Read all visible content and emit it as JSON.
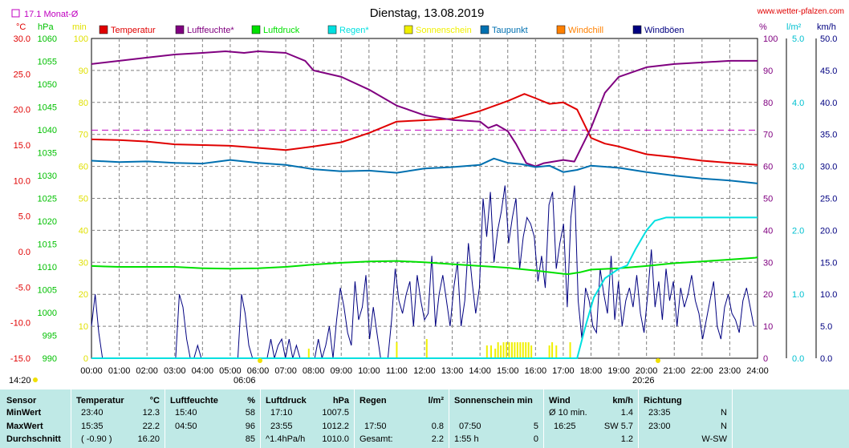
{
  "chart_data": {
    "type": "line",
    "title": "Dienstag, 13.08.2019",
    "source": "www.wetter-pfalzen.com",
    "x_ticks": [
      "00:00",
      "01:00",
      "02:00",
      "03:00",
      "04:00",
      "05:00",
      "06:00",
      "07:00",
      "08:00",
      "09:00",
      "10:00",
      "11:00",
      "12:00",
      "13:00",
      "14:00",
      "15:00",
      "16:00",
      "17:00",
      "18:00",
      "19:00",
      "20:00",
      "21:00",
      "22:00",
      "23:00",
      "24:00"
    ],
    "sunrise": "06:06",
    "sunset": "20:26",
    "sun_left_label": "14:20",
    "month_avg_label": "17.1 Monat-Ø",
    "month_avg_c": 17.1,
    "axes": {
      "temp": {
        "unit": "°C",
        "min": -15,
        "max": 30,
        "ticks": [
          "30.0",
          "25.0",
          "20.0",
          "15.0",
          "10.0",
          "5.0",
          "0.0",
          "-5.0",
          "-10.0",
          "-15.0"
        ]
      },
      "pressure": {
        "unit": "hPa",
        "min": 990,
        "max": 1060,
        "ticks": [
          "1060",
          "1055",
          "1050",
          "1045",
          "1040",
          "1035",
          "1030",
          "1025",
          "1020",
          "1015",
          "1010",
          "1005",
          "1000",
          "995",
          "990"
        ]
      },
      "minutes": {
        "unit": "min",
        "min": 0,
        "max": 100,
        "ticks": [
          "100",
          "90",
          "80",
          "70",
          "60",
          "50",
          "40",
          "30",
          "20",
          "10",
          "0"
        ]
      },
      "humidity": {
        "unit": "%",
        "min": 0,
        "max": 100,
        "ticks": [
          "100",
          "90",
          "80",
          "70",
          "60",
          "50",
          "40",
          "30",
          "20",
          "10",
          "0"
        ]
      },
      "rain": {
        "unit": "l/m²",
        "min": 0,
        "max": 5,
        "ticks": [
          "5.0",
          "4.0",
          "3.0",
          "2.0",
          "1.0",
          "0.0"
        ]
      },
      "wind": {
        "unit": "km/h",
        "min": 0,
        "max": 50,
        "ticks": [
          "50.0",
          "45.0",
          "40.0",
          "35.0",
          "30.0",
          "25.0",
          "20.0",
          "15.0",
          "10.0",
          "5.0",
          "0.0"
        ]
      }
    },
    "legend": [
      {
        "name": "Temperatur",
        "color": "#e00000"
      },
      {
        "name": "Luftfeuchte*",
        "color": "#800080"
      },
      {
        "name": "Luftdruck",
        "color": "#00e000"
      },
      {
        "name": "Regen*",
        "color": "#00e0e0"
      },
      {
        "name": "Sonnenschein",
        "color": "#f0f000"
      },
      {
        "name": "Taupunkt",
        "color": "#0070b0"
      },
      {
        "name": "Windchill",
        "color": "#ff8000"
      },
      {
        "name": "Windböen",
        "color": "#000080"
      }
    ],
    "series": [
      {
        "key": "temperature",
        "axis": "temp",
        "color": "#e00000",
        "points": [
          [
            0,
            15.8
          ],
          [
            1,
            15.7
          ],
          [
            2,
            15.5
          ],
          [
            3,
            15.1
          ],
          [
            4,
            15.0
          ],
          [
            5,
            14.9
          ],
          [
            6,
            14.6
          ],
          [
            7,
            14.3
          ],
          [
            8,
            14.8
          ],
          [
            9,
            15.4
          ],
          [
            10,
            16.7
          ],
          [
            11,
            18.3
          ],
          [
            12,
            18.5
          ],
          [
            13,
            18.7
          ],
          [
            14,
            19.8
          ],
          [
            15,
            21.2
          ],
          [
            15.6,
            22.2
          ],
          [
            16,
            21.6
          ],
          [
            16.5,
            20.8
          ],
          [
            17,
            21.0
          ],
          [
            17.5,
            20.0
          ],
          [
            18,
            16.0
          ],
          [
            18.5,
            15.2
          ],
          [
            19,
            14.8
          ],
          [
            20,
            13.7
          ],
          [
            21,
            13.3
          ],
          [
            22,
            12.8
          ],
          [
            23,
            12.5
          ],
          [
            23.67,
            12.3
          ],
          [
            24,
            12.2
          ]
        ]
      },
      {
        "key": "humidity",
        "axis": "humidity",
        "color": "#800080",
        "points": [
          [
            0,
            92
          ],
          [
            1,
            93
          ],
          [
            2,
            94
          ],
          [
            3,
            95
          ],
          [
            4,
            95.5
          ],
          [
            4.83,
            96
          ],
          [
            5.5,
            95.5
          ],
          [
            6,
            96
          ],
          [
            7,
            95.5
          ],
          [
            7.7,
            93
          ],
          [
            8,
            90
          ],
          [
            9,
            88
          ],
          [
            10,
            84
          ],
          [
            11,
            79
          ],
          [
            12,
            76
          ],
          [
            13,
            74.5
          ],
          [
            14,
            74
          ],
          [
            14.3,
            72
          ],
          [
            14.6,
            73
          ],
          [
            15,
            71
          ],
          [
            15.3,
            67
          ],
          [
            15.67,
            61
          ],
          [
            16,
            60
          ],
          [
            16.3,
            61
          ],
          [
            17,
            62
          ],
          [
            17.4,
            61.5
          ],
          [
            18,
            72
          ],
          [
            18.5,
            83
          ],
          [
            19,
            88
          ],
          [
            20,
            91
          ],
          [
            21,
            92
          ],
          [
            22,
            92.5
          ],
          [
            23,
            93
          ],
          [
            24,
            93
          ]
        ]
      },
      {
        "key": "pressure",
        "axis": "pressure",
        "color": "#00e000",
        "points": [
          [
            0,
            1010.2
          ],
          [
            1,
            1010.0
          ],
          [
            2,
            1010.0
          ],
          [
            3,
            1010.0
          ],
          [
            4,
            1009.7
          ],
          [
            5,
            1009.6
          ],
          [
            6,
            1009.7
          ],
          [
            7,
            1010.0
          ],
          [
            8,
            1010.5
          ],
          [
            9,
            1010.9
          ],
          [
            10,
            1011.2
          ],
          [
            11,
            1011.3
          ],
          [
            12,
            1011.0
          ],
          [
            13,
            1010.6
          ],
          [
            14,
            1010.2
          ],
          [
            15,
            1009.8
          ],
          [
            16,
            1009.2
          ],
          [
            17,
            1008.5
          ],
          [
            17.17,
            1008.4
          ],
          [
            17.6,
            1008.8
          ],
          [
            18,
            1009.4
          ],
          [
            19,
            1009.7
          ],
          [
            20,
            1010.2
          ],
          [
            21,
            1010.8
          ],
          [
            22,
            1011.2
          ],
          [
            23,
            1011.6
          ],
          [
            23.92,
            1012.0
          ],
          [
            24,
            1012.1
          ]
        ]
      },
      {
        "key": "dewpoint",
        "axis": "temp",
        "color": "#0070b0",
        "points": [
          [
            0,
            12.8
          ],
          [
            1,
            12.6
          ],
          [
            2,
            12.7
          ],
          [
            3,
            12.5
          ],
          [
            4,
            12.4
          ],
          [
            5,
            12.9
          ],
          [
            6,
            12.5
          ],
          [
            7,
            12.2
          ],
          [
            8,
            11.6
          ],
          [
            9,
            11.3
          ],
          [
            10,
            11.4
          ],
          [
            11,
            11.1
          ],
          [
            12,
            11.7
          ],
          [
            13,
            11.9
          ],
          [
            14,
            12.2
          ],
          [
            14.5,
            13.1
          ],
          [
            15,
            12.5
          ],
          [
            15.5,
            12.3
          ],
          [
            16,
            11.9
          ],
          [
            16.5,
            12.1
          ],
          [
            17,
            11.2
          ],
          [
            17.5,
            11.5
          ],
          [
            18,
            12.1
          ],
          [
            19,
            11.8
          ],
          [
            20,
            11.2
          ],
          [
            21,
            10.7
          ],
          [
            22,
            10.3
          ],
          [
            23,
            10.0
          ],
          [
            24,
            9.6
          ]
        ]
      },
      {
        "key": "rain",
        "axis": "rain",
        "color": "#00e0e0",
        "points": [
          [
            0,
            0
          ],
          [
            17.5,
            0
          ],
          [
            17.8,
            0.5
          ],
          [
            18.1,
            0.95
          ],
          [
            18.5,
            1.25
          ],
          [
            19,
            1.4
          ],
          [
            19.3,
            1.45
          ],
          [
            19.6,
            1.7
          ],
          [
            20,
            2.0
          ],
          [
            20.3,
            2.15
          ],
          [
            20.7,
            2.2
          ],
          [
            24,
            2.2
          ]
        ]
      }
    ],
    "wind_gusts": {
      "axis": "wind",
      "color": "#000080",
      "values": [
        5,
        10,
        4,
        0,
        0,
        0,
        0,
        0,
        0,
        0,
        0,
        0,
        0,
        0,
        0,
        0,
        0,
        0,
        0,
        0,
        0,
        0,
        0,
        0,
        10,
        8,
        3,
        0,
        0,
        2,
        0,
        0,
        0,
        0,
        0,
        0,
        0,
        0,
        0,
        0,
        0,
        10,
        7,
        2,
        0,
        0,
        0,
        0,
        0,
        3,
        0,
        2,
        3,
        0,
        3,
        0,
        2,
        0,
        0,
        0,
        0,
        0,
        3,
        0,
        2,
        5,
        0,
        6,
        11,
        8,
        4,
        2,
        12,
        6,
        8,
        13,
        3,
        8,
        4,
        0,
        0,
        0,
        6,
        14,
        9,
        7,
        10,
        12,
        5,
        13,
        9,
        6,
        7,
        16,
        5,
        10,
        13,
        9,
        5,
        11,
        15,
        5,
        9,
        18,
        12,
        7,
        11,
        25,
        19,
        26,
        15,
        20,
        23,
        27,
        18,
        22,
        25,
        14,
        19,
        22,
        21,
        19,
        12,
        16,
        11,
        24,
        26,
        14,
        18,
        21,
        8,
        22,
        27,
        9,
        3,
        11,
        9,
        5,
        4,
        14,
        10,
        7,
        16,
        6,
        12,
        5,
        9,
        11,
        8,
        13,
        7,
        4,
        10,
        17,
        8,
        12,
        6,
        14,
        9,
        12,
        5,
        11,
        8,
        10,
        13,
        9,
        7,
        3,
        6,
        9,
        12,
        5,
        3,
        8,
        10,
        7,
        6,
        4,
        9,
        11,
        8,
        5
      ]
    },
    "sunshine": {
      "axis": "minutes",
      "color": "#f0f000",
      "bars": [
        [
          7.83,
          3
        ],
        [
          11.0,
          5
        ],
        [
          12.08,
          6
        ],
        [
          14.25,
          4
        ],
        [
          14.4,
          4
        ],
        [
          14.55,
          3
        ],
        [
          14.65,
          5
        ],
        [
          14.75,
          4
        ],
        [
          14.85,
          5
        ],
        [
          14.95,
          5
        ],
        [
          15.05,
          5
        ],
        [
          15.15,
          5
        ],
        [
          15.25,
          5
        ],
        [
          15.35,
          5
        ],
        [
          15.45,
          5
        ],
        [
          15.55,
          5
        ],
        [
          15.65,
          5
        ],
        [
          15.75,
          5
        ],
        [
          15.85,
          4
        ],
        [
          16.5,
          4
        ],
        [
          16.6,
          5
        ],
        [
          16.75,
          4
        ],
        [
          17.25,
          5
        ]
      ]
    }
  },
  "stats": {
    "headers": {
      "sensor": "Sensor",
      "temp": "Temperatur",
      "temp_unit": "°C",
      "hum": "Luftfeuchte",
      "hum_unit": "%",
      "press": "Luftdruck",
      "press_unit": "hPa",
      "rain": "Regen",
      "rain_unit": "l/m²",
      "sun": "Sonnenschein min",
      "wind": "Wind",
      "wind_unit": "km/h",
      "dir": "Richtung"
    },
    "rows": [
      {
        "label": "MinWert",
        "temp_t": "23:40",
        "temp_v": "12.3",
        "hum_t": "15:40",
        "hum_v": "58",
        "press_t": "17:10",
        "press_v": "1007.5",
        "rain_t": "",
        "rain_v": "",
        "sun_t": "",
        "sun_v": "",
        "wind_t": "Ø 10 min.",
        "wind_v": "1.4",
        "dir_t": "23:35",
        "dir_v": "N"
      },
      {
        "label": "MaxWert",
        "temp_t": "15:35",
        "temp_v": "22.2",
        "hum_t": "04:50",
        "hum_v": "96",
        "press_t": "23:55",
        "press_v": "1012.2",
        "rain_t": "17:50",
        "rain_v": "0.8",
        "sun_t": "07:50",
        "sun_v": "5",
        "wind_t": "16:25",
        "wind_v": "SW 5.7",
        "dir_t": "23:00",
        "dir_v": "N"
      },
      {
        "label": "Durchschnitt",
        "temp_t": "( -0.90 )",
        "temp_v": "16.20",
        "hum_t": "",
        "hum_v": "85",
        "press_t": "^1.4hPa/h",
        "press_v": "1010.0",
        "rain_t": "Gesamt:",
        "rain_v": "2.2",
        "sun_t": "1:55 h",
        "sun_v": "0",
        "wind_t": "",
        "wind_v": "1.2",
        "dir_t": "",
        "dir_v": "W-SW"
      }
    ]
  }
}
